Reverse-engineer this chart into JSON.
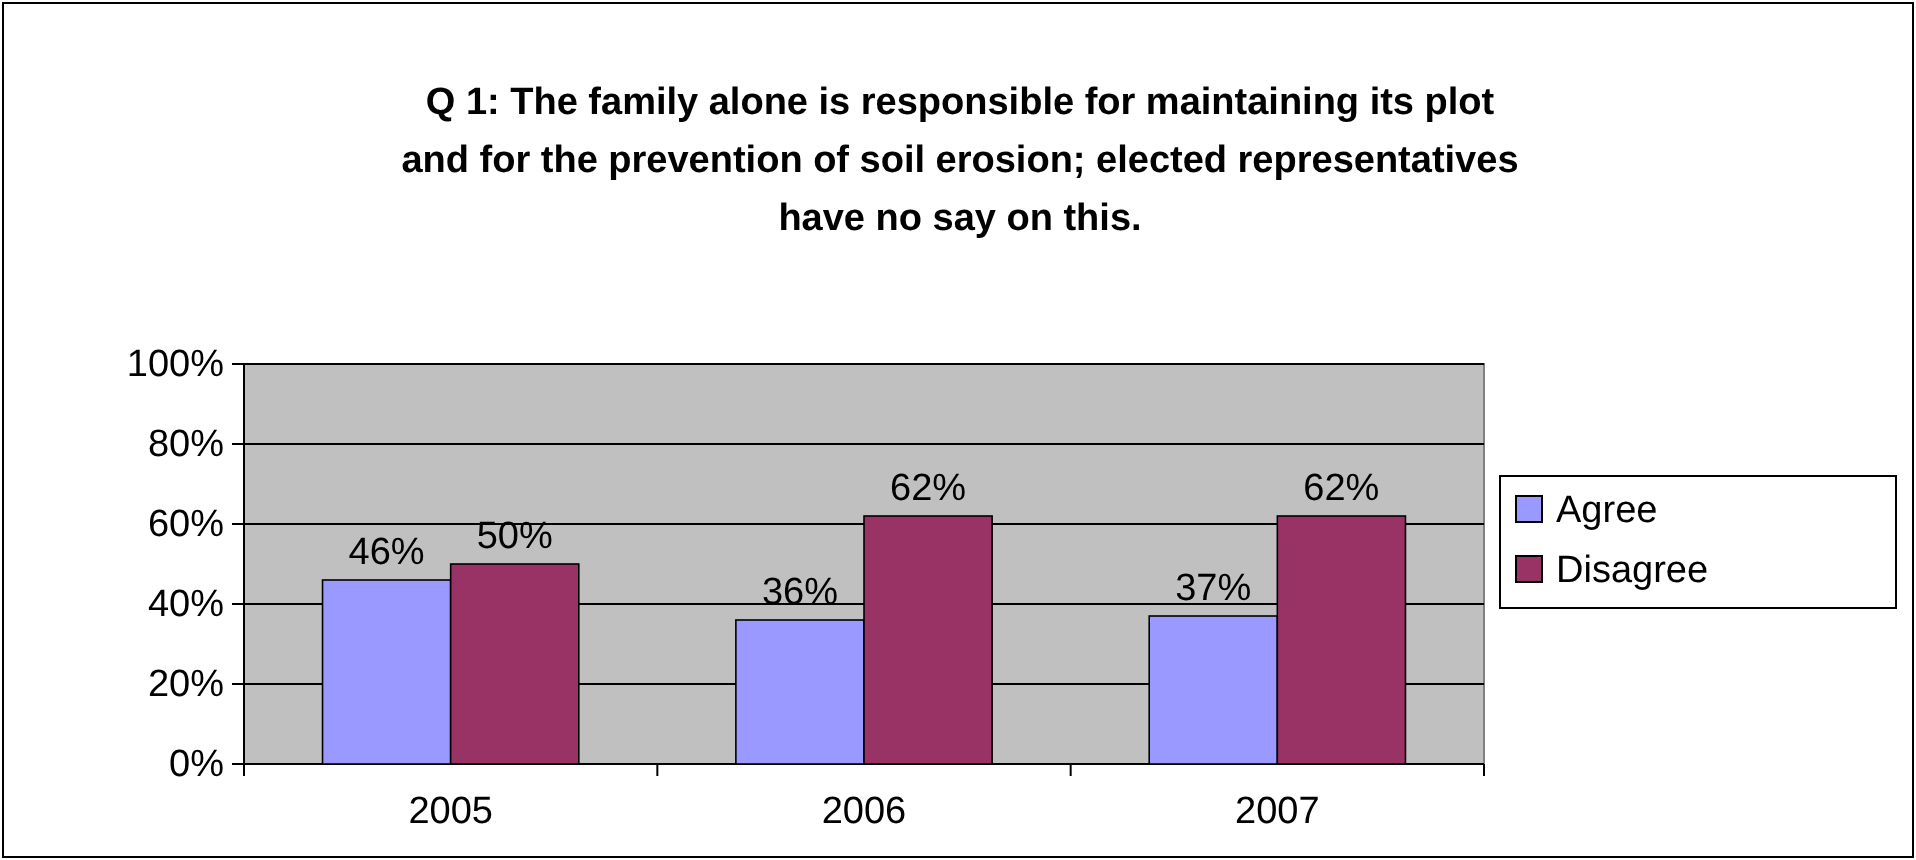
{
  "chart_data": {
    "type": "bar",
    "title": "Q 1: The family alone is responsible for maintaining its plot and for the prevention of soil erosion; elected representatives have no say on this.",
    "categories": [
      "2005",
      "2006",
      "2007"
    ],
    "series": [
      {
        "name": "Agree",
        "color": "#9999ff",
        "values": [
          46,
          36,
          37
        ],
        "value_labels": [
          "46%",
          "36%",
          "37%"
        ]
      },
      {
        "name": "Disagree",
        "color": "#993366",
        "values": [
          50,
          62,
          62
        ],
        "value_labels": [
          "50%",
          "62%",
          "62%"
        ]
      }
    ],
    "ylim": [
      0,
      100
    ],
    "yticks": [
      {
        "value": 0,
        "label": "0%"
      },
      {
        "value": 20,
        "label": "20%"
      },
      {
        "value": 40,
        "label": "40%"
      },
      {
        "value": 60,
        "label": "60%"
      },
      {
        "value": 80,
        "label": "80%"
      },
      {
        "value": 100,
        "label": "100%"
      }
    ],
    "grid": "y",
    "legend": "right"
  }
}
